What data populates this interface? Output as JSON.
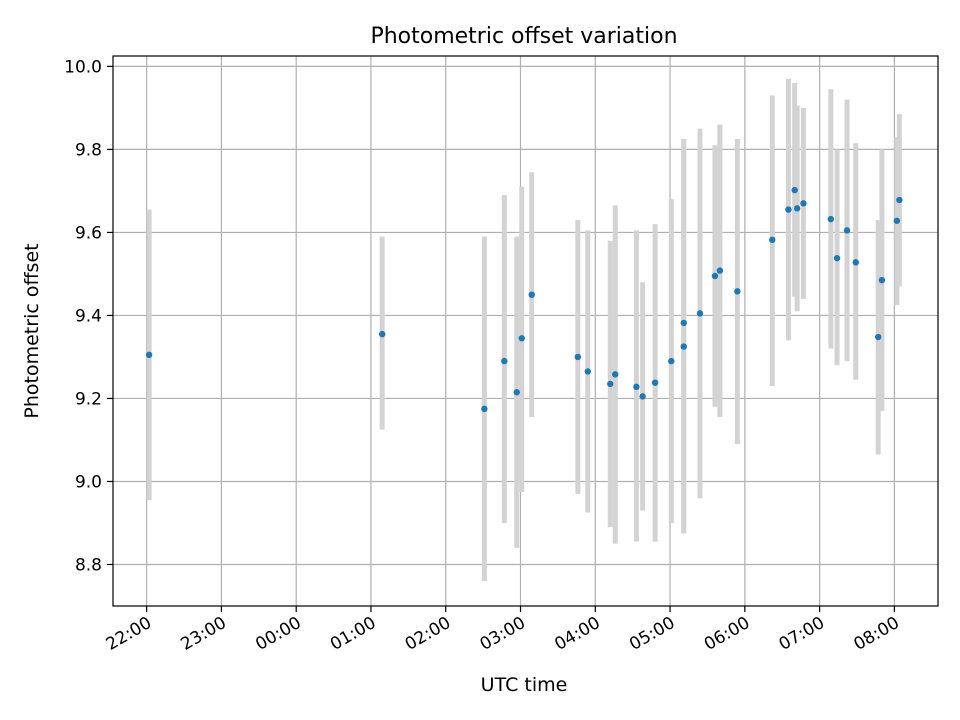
{
  "chart_data": {
    "type": "scatter",
    "title": "Photometric offset variation",
    "xlabel": "UTC time",
    "ylabel": "Photometric offset",
    "xlim": [
      "21:33",
      "08:35"
    ],
    "ylim": [
      8.7,
      10.025
    ],
    "grid": true,
    "x_ticks": [
      "22:00",
      "23:00",
      "00:00",
      "01:00",
      "02:00",
      "03:00",
      "04:00",
      "05:00",
      "06:00",
      "07:00",
      "08:00"
    ],
    "y_ticks": [
      "8.8",
      "9.0",
      "9.2",
      "9.4",
      "9.6",
      "9.8",
      "10.0"
    ],
    "point_color": "#1f77b4",
    "errorbar_color": "#d3d3d3",
    "points": [
      {
        "t": "22:02",
        "y": 9.305,
        "err_low": 8.955,
        "err_high": 9.655
      },
      {
        "t": "01:09",
        "y": 9.355,
        "err_low": 9.125,
        "err_high": 9.59
      },
      {
        "t": "02:31",
        "y": 9.175,
        "err_low": 8.76,
        "err_high": 9.59
      },
      {
        "t": "02:47",
        "y": 9.29,
        "err_low": 8.9,
        "err_high": 9.69
      },
      {
        "t": "02:57",
        "y": 9.215,
        "err_low": 8.84,
        "err_high": 9.59
      },
      {
        "t": "03:01",
        "y": 9.345,
        "err_low": 8.975,
        "err_high": 9.71
      },
      {
        "t": "03:09",
        "y": 9.45,
        "err_low": 9.155,
        "err_high": 9.745
      },
      {
        "t": "03:46",
        "y": 9.3,
        "err_low": 8.97,
        "err_high": 9.63
      },
      {
        "t": "03:54",
        "y": 9.265,
        "err_low": 8.925,
        "err_high": 9.605
      },
      {
        "t": "04:12",
        "y": 9.235,
        "err_low": 8.89,
        "err_high": 9.58
      },
      {
        "t": "04:16",
        "y": 9.258,
        "err_low": 8.85,
        "err_high": 9.665
      },
      {
        "t": "04:33",
        "y": 9.228,
        "err_low": 8.855,
        "err_high": 9.605
      },
      {
        "t": "04:38",
        "y": 9.205,
        "err_low": 8.93,
        "err_high": 9.48
      },
      {
        "t": "04:48",
        "y": 9.238,
        "err_low": 8.855,
        "err_high": 9.62
      },
      {
        "t": "05:01",
        "y": 9.29,
        "err_low": 8.9,
        "err_high": 9.68
      },
      {
        "t": "05:11",
        "y": 9.382,
        "err_low": 8.875,
        "err_high": 9.825
      },
      {
        "t": "05:11",
        "y": 9.325,
        "err_low": 8.875,
        "err_high": 9.825
      },
      {
        "t": "05:24",
        "y": 9.405,
        "err_low": 8.96,
        "err_high": 9.85
      },
      {
        "t": "05:36",
        "y": 9.495,
        "err_low": 9.18,
        "err_high": 9.81
      },
      {
        "t": "05:40",
        "y": 9.508,
        "err_low": 9.155,
        "err_high": 9.86
      },
      {
        "t": "05:54",
        "y": 9.458,
        "err_low": 9.09,
        "err_high": 9.825
      },
      {
        "t": "06:22",
        "y": 9.582,
        "err_low": 9.23,
        "err_high": 9.93
      },
      {
        "t": "06:35",
        "y": 9.655,
        "err_low": 9.34,
        "err_high": 9.97
      },
      {
        "t": "06:40",
        "y": 9.702,
        "err_low": 9.445,
        "err_high": 9.96
      },
      {
        "t": "06:42",
        "y": 9.658,
        "err_low": 9.41,
        "err_high": 9.905
      },
      {
        "t": "06:47",
        "y": 9.67,
        "err_low": 9.44,
        "err_high": 9.9
      },
      {
        "t": "07:09",
        "y": 9.632,
        "err_low": 9.32,
        "err_high": 9.945
      },
      {
        "t": "07:14",
        "y": 9.538,
        "err_low": 9.28,
        "err_high": 9.8
      },
      {
        "t": "07:22",
        "y": 9.605,
        "err_low": 9.29,
        "err_high": 9.92
      },
      {
        "t": "07:29",
        "y": 9.528,
        "err_low": 9.245,
        "err_high": 9.815
      },
      {
        "t": "07:47",
        "y": 9.348,
        "err_low": 9.065,
        "err_high": 9.63
      },
      {
        "t": "07:50",
        "y": 9.485,
        "err_low": 9.17,
        "err_high": 9.8
      },
      {
        "t": "08:02",
        "y": 9.628,
        "err_low": 9.425,
        "err_high": 9.83
      },
      {
        "t": "08:04",
        "y": 9.678,
        "err_low": 9.47,
        "err_high": 9.885
      }
    ]
  }
}
